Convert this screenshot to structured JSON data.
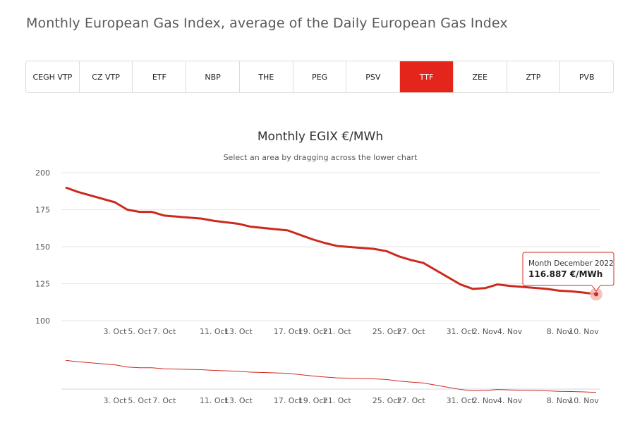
{
  "page": {
    "title": "Monthly European Gas Index, average of the Daily European Gas Index"
  },
  "tabs": [
    {
      "label": "CEGH VTP",
      "active": false
    },
    {
      "label": "CZ VTP",
      "active": false
    },
    {
      "label": "ETF",
      "active": false
    },
    {
      "label": "NBP",
      "active": false
    },
    {
      "label": "THE",
      "active": false
    },
    {
      "label": "PEG",
      "active": false
    },
    {
      "label": "PSV",
      "active": false
    },
    {
      "label": "TTF",
      "active": true
    },
    {
      "label": "ZEE",
      "active": false
    },
    {
      "label": "ZTP",
      "active": false
    },
    {
      "label": "PVB",
      "active": false
    }
  ],
  "colors": {
    "accent": "#e3251b",
    "line": "#cc2a1e",
    "marker_halo": "#f4b3ae"
  },
  "chart_data": {
    "type": "line",
    "title": "Monthly EGIX €/MWh",
    "subtitle": "Select an area by dragging across the lower chart",
    "xlabel": "",
    "ylabel": "",
    "ylim": [
      100,
      200
    ],
    "yticks": [
      100,
      125,
      150,
      175,
      200
    ],
    "grid": true,
    "legend": "none",
    "x_ticks": [
      "3. Oct",
      "5. Oct",
      "7. Oct",
      "11. Oct",
      "13. Oct",
      "17. Oct",
      "19. Oct",
      "21. Oct",
      "25. Oct",
      "27. Oct",
      "31. Oct",
      "2. Nov",
      "4. Nov",
      "8. Nov",
      "10. Nov"
    ],
    "series": [
      {
        "x": [
          "2022-09-29",
          "2022-09-30",
          "2022-10-03",
          "2022-10-04",
          "2022-10-05",
          "2022-10-06",
          "2022-10-07",
          "2022-10-10",
          "2022-10-11",
          "2022-10-12",
          "2022-10-13",
          "2022-10-14",
          "2022-10-17",
          "2022-10-18",
          "2022-10-19",
          "2022-10-20",
          "2022-10-21",
          "2022-10-24",
          "2022-10-25",
          "2022-10-26",
          "2022-10-27",
          "2022-10-28",
          "2022-10-31",
          "2022-11-01",
          "2022-11-02",
          "2022-11-03",
          "2022-11-04",
          "2022-11-07",
          "2022-11-08",
          "2022-11-09",
          "2022-11-10",
          "2022-11-11"
        ],
        "values": [
          190,
          187,
          180,
          175,
          173.5,
          173.5,
          171,
          169,
          167.5,
          166.5,
          165.5,
          163.5,
          161,
          158,
          155,
          152.5,
          150.5,
          148.5,
          147,
          143.5,
          141,
          139,
          124.5,
          121.5,
          122,
          124.5,
          123.5,
          121.5,
          120.3,
          119.8,
          119,
          117.9
        ]
      }
    ],
    "tooltip": {
      "line1": "Month December 2022",
      "line2": "116.887 €/MWh"
    }
  }
}
